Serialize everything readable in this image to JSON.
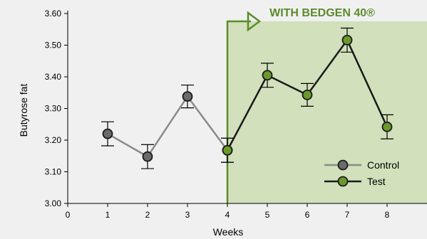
{
  "chart_data": {
    "type": "line",
    "xlabel": "Weeks",
    "ylabel": "Butyrose fat",
    "xlim": [
      0,
      9
    ],
    "ylim": [
      3.0,
      3.6
    ],
    "x_ticks": [
      0,
      1,
      2,
      3,
      4,
      5,
      6,
      7,
      8
    ],
    "x_tick_labels": [
      "0",
      "1",
      "2",
      "3",
      "4",
      "5",
      "6",
      "7",
      "8"
    ],
    "y_ticks": [
      3.0,
      3.1,
      3.2,
      3.3,
      3.4,
      3.5,
      3.6
    ],
    "y_tick_labels": [
      "3.00",
      "3.10",
      "3.20",
      "3.30",
      "3.40",
      "3.50",
      "3.60"
    ],
    "grid": false,
    "legend_position": "bottom-right",
    "annotation": {
      "text": "WITH BEDGEN 40®",
      "x_start": 4,
      "color": "#5b8c2a",
      "fill": "#d2e0bb"
    },
    "series": [
      {
        "name": "Control",
        "line_color": "#8a8a8a",
        "marker_color": "#6a6a6a",
        "x": [
          1,
          2,
          3,
          4
        ],
        "y": [
          3.22,
          3.148,
          3.338,
          3.168
        ],
        "error": [
          0.038,
          0.038,
          0.036,
          0.038
        ]
      },
      {
        "name": "Test",
        "line_color": "#1a1a1a",
        "marker_color": "#6a9a2a",
        "x": [
          4,
          5,
          6,
          7,
          8
        ],
        "y": [
          3.168,
          3.405,
          3.343,
          3.516,
          3.242
        ],
        "error": [
          0.038,
          0.038,
          0.036,
          0.038,
          0.038
        ]
      }
    ]
  }
}
